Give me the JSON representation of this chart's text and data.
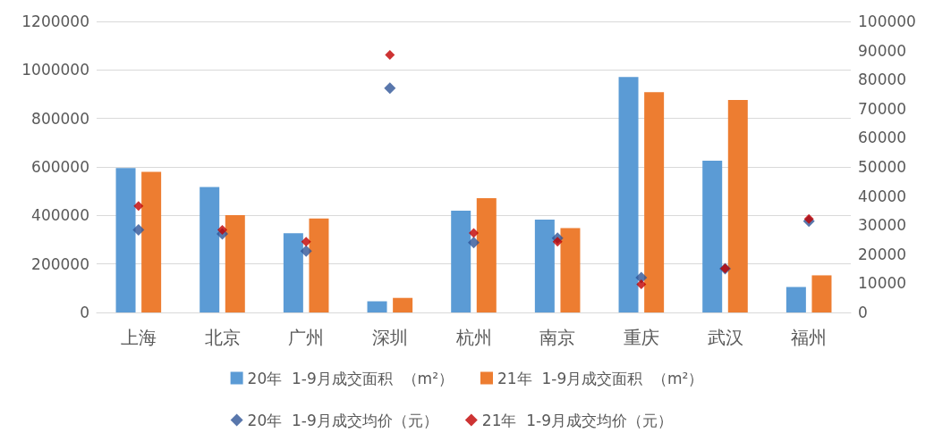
{
  "chart_data": {
    "type": "bar",
    "categories": [
      "上海",
      "北京",
      "广州",
      "深圳",
      "杭州",
      "南京",
      "重庆",
      "武汉",
      "福州"
    ],
    "series": [
      {
        "name": "20年  1-9月成交面积  （m²）",
        "color": "#5b9bd5",
        "values": [
          595000,
          517000,
          327000,
          46000,
          420000,
          383000,
          971000,
          626000,
          105000
        ]
      },
      {
        "name": "21年  1-9月成交面积  （m²）",
        "color": "#ed7d31",
        "values": [
          580000,
          401000,
          387000,
          60000,
          471000,
          348000,
          908000,
          876000,
          153000
        ]
      },
      {
        "name": "20年  1-9月成交均价（元）",
        "type": "scatter",
        "axis": "y2",
        "marker": "diamond",
        "color": "#2f5597",
        "values": [
          28400,
          27000,
          21100,
          77100,
          24000,
          25500,
          12000,
          15000,
          31400
        ]
      },
      {
        "name": "21年  1-9月成交均价（元）",
        "type": "scatter",
        "axis": "y2",
        "marker": "diamond",
        "color": "#c00000",
        "values": [
          36600,
          28400,
          24300,
          88500,
          27300,
          24300,
          9700,
          15100,
          32100
        ]
      }
    ],
    "ylim": [
      0,
      1200000
    ],
    "yticks": [
      0,
      200000,
      400000,
      600000,
      800000,
      1000000,
      1200000
    ],
    "y2lim": [
      0,
      100000
    ],
    "y2ticks": [
      0,
      10000,
      20000,
      30000,
      40000,
      50000,
      60000,
      70000,
      80000,
      90000,
      100000
    ],
    "grid": "y",
    "legend": "bottom"
  }
}
